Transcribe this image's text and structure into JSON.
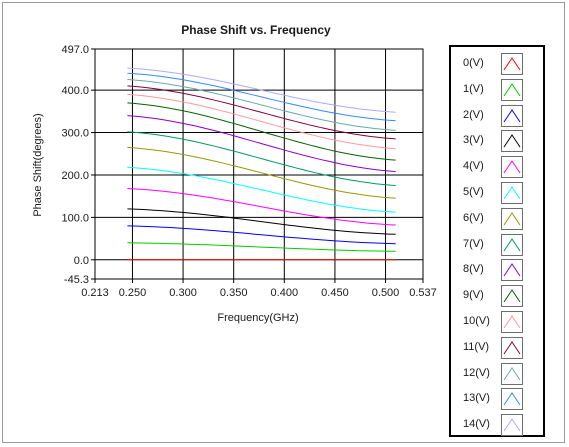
{
  "chart_data": {
    "type": "line",
    "title": "Phase Shift vs. Frequency",
    "xlabel": "Frequency(GHz)",
    "ylabel": "Phase Shift(degrees)",
    "xlim": [
      0.213,
      0.537
    ],
    "ylim": [
      -45.3,
      497.0
    ],
    "x_ticks": [
      "0.213",
      "0.250",
      "0.300",
      "0.350",
      "0.400",
      "0.450",
      "0.500",
      "0.537"
    ],
    "y_ticks": [
      "497.0",
      "400.0",
      "300.0",
      "200.0",
      "100.0",
      "0.0",
      "-45.3"
    ],
    "y_tick_values": [
      497.0,
      400.0,
      300.0,
      200.0,
      100.0,
      0.0,
      -45.3
    ],
    "x_tick_values": [
      0.213,
      0.25,
      0.3,
      0.35,
      0.4,
      0.45,
      0.5,
      0.537
    ],
    "grid": true,
    "legend_position": "right",
    "x": [
      0.245,
      0.51
    ],
    "series": [
      {
        "name": "0(V)",
        "color": "#ff0000",
        "values": [
          0,
          0
        ]
      },
      {
        "name": "1(V)",
        "color": "#00cc00",
        "values": [
          40,
          20
        ]
      },
      {
        "name": "2(V)",
        "color": "#0000ff",
        "values": [
          80,
          38
        ]
      },
      {
        "name": "3(V)",
        "color": "#000000",
        "values": [
          120,
          60
        ]
      },
      {
        "name": "4(V)",
        "color": "#ff00ff",
        "values": [
          168,
          82
        ]
      },
      {
        "name": "5(V)",
        "color": "#00ffff",
        "values": [
          218,
          112
        ]
      },
      {
        "name": "6(V)",
        "color": "#999900",
        "values": [
          265,
          145
        ]
      },
      {
        "name": "7(V)",
        "color": "#009966",
        "values": [
          302,
          175
        ]
      },
      {
        "name": "8(V)",
        "color": "#8800cc",
        "values": [
          340,
          208
        ]
      },
      {
        "name": "9(V)",
        "color": "#006600",
        "values": [
          370,
          235
        ]
      },
      {
        "name": "10(V)",
        "color": "#ff9999",
        "values": [
          390,
          262
        ]
      },
      {
        "name": "11(V)",
        "color": "#880033",
        "values": [
          410,
          285
        ]
      },
      {
        "name": "12(V)",
        "color": "#66aaaa",
        "values": [
          425,
          305
        ]
      },
      {
        "name": "13(V)",
        "color": "#3388ff",
        "values": [
          440,
          328
        ]
      },
      {
        "name": "14(V)",
        "color": "#aaaaff",
        "values": [
          452,
          348
        ]
      }
    ]
  }
}
